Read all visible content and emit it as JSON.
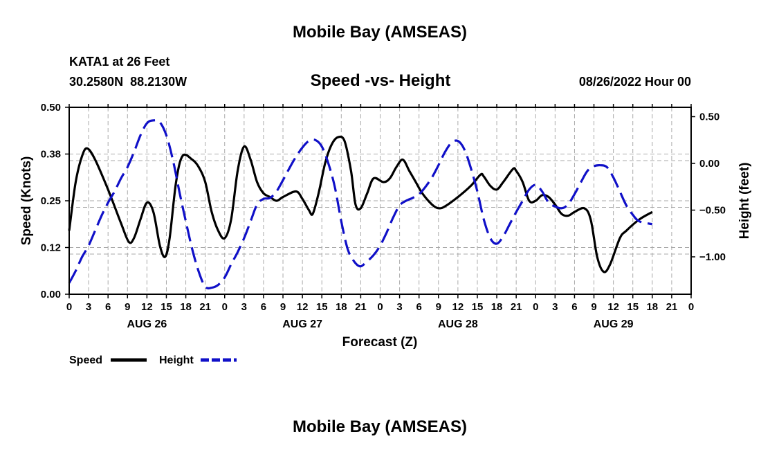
{
  "title": "Mobile Bay (AMSEAS)",
  "footer_title": "Mobile Bay (AMSEAS)",
  "station": {
    "name": "KATA1 at 26 Feet",
    "coords": "30.2580N  88.2130W"
  },
  "plot_title": "Speed -vs- Height",
  "datetime": "08/26/2022 Hour 00",
  "colors": {
    "speed": "#000000",
    "height": "#1010c8",
    "grid": "#aaaaaa"
  },
  "chart_data": {
    "type": "line",
    "title": "Speed -vs- Height",
    "xlabel": "Forecast (Z)",
    "ylabel": "Speed (Knots)",
    "y2label": "Height (feet)",
    "xlim": [
      0,
      96
    ],
    "ylim": [
      0,
      0.5
    ],
    "y2lim": [
      -1.4,
      0.6
    ],
    "grid": true,
    "x_ticks": [
      0,
      3,
      6,
      9,
      12,
      15,
      18,
      21,
      24,
      27,
      30,
      33,
      36,
      39,
      42,
      45,
      48,
      51,
      54,
      57,
      60,
      63,
      66,
      69,
      72,
      75,
      78,
      81,
      84,
      87,
      90,
      93,
      96
    ],
    "x_tick_labels": [
      "0",
      "3",
      "6",
      "9",
      "12",
      "15",
      "18",
      "21",
      "0",
      "3",
      "6",
      "9",
      "12",
      "15",
      "18",
      "21",
      "0",
      "3",
      "6",
      "9",
      "12",
      "15",
      "18",
      "21",
      "0",
      "3",
      "6",
      "9",
      "12",
      "15",
      "18",
      "21",
      "0"
    ],
    "day_labels": [
      {
        "x": 12,
        "label": "AUG 26"
      },
      {
        "x": 36,
        "label": "AUG 27"
      },
      {
        "x": 60,
        "label": "AUG 28"
      },
      {
        "x": 84,
        "label": "AUG 29"
      }
    ],
    "y_ticks": [
      0,
      0.125,
      0.25,
      0.375,
      0.5
    ],
    "y_tick_labels": [
      "0.00",
      "0.12",
      "0.25",
      "0.38",
      "0.50"
    ],
    "y2_ticks": [
      -1.0,
      -0.5,
      0.0,
      0.5
    ],
    "y2_tick_labels": [
      "−1.00",
      "−0.50",
      "0.00",
      "0.50"
    ],
    "legend": [
      {
        "label": "Speed",
        "series": "speed"
      },
      {
        "label": "Height",
        "series": "height"
      }
    ],
    "series": [
      {
        "name": "Speed",
        "axis": "left",
        "style": "solid",
        "points": [
          [
            0,
            0.17
          ],
          [
            1,
            0.3
          ],
          [
            2,
            0.37
          ],
          [
            2.8,
            0.39
          ],
          [
            4,
            0.36
          ],
          [
            6,
            0.28
          ],
          [
            8,
            0.19
          ],
          [
            9.2,
            0.14
          ],
          [
            10,
            0.15
          ],
          [
            11,
            0.2
          ],
          [
            12,
            0.245
          ],
          [
            13,
            0.22
          ],
          [
            14,
            0.13
          ],
          [
            14.8,
            0.1
          ],
          [
            15.5,
            0.15
          ],
          [
            16.5,
            0.3
          ],
          [
            17.5,
            0.37
          ],
          [
            19,
            0.36
          ],
          [
            20,
            0.34
          ],
          [
            21,
            0.3
          ],
          [
            22,
            0.22
          ],
          [
            23,
            0.17
          ],
          [
            24,
            0.15
          ],
          [
            25,
            0.2
          ],
          [
            26,
            0.33
          ],
          [
            27,
            0.395
          ],
          [
            28,
            0.36
          ],
          [
            29,
            0.3
          ],
          [
            30,
            0.27
          ],
          [
            31,
            0.26
          ],
          [
            32,
            0.25
          ],
          [
            33,
            0.26
          ],
          [
            35,
            0.275
          ],
          [
            36,
            0.255
          ],
          [
            37,
            0.225
          ],
          [
            37.6,
            0.215
          ],
          [
            38.5,
            0.27
          ],
          [
            39.5,
            0.35
          ],
          [
            40.5,
            0.4
          ],
          [
            41.5,
            0.42
          ],
          [
            42.5,
            0.41
          ],
          [
            43.5,
            0.33
          ],
          [
            44.2,
            0.24
          ],
          [
            45,
            0.23
          ],
          [
            46,
            0.27
          ],
          [
            47,
            0.31
          ],
          [
            48.5,
            0.3
          ],
          [
            49.5,
            0.31
          ],
          [
            50.5,
            0.34
          ],
          [
            51.5,
            0.36
          ],
          [
            52.5,
            0.33
          ],
          [
            53.5,
            0.3
          ],
          [
            54.5,
            0.27
          ],
          [
            56,
            0.24
          ],
          [
            57,
            0.23
          ],
          [
            58,
            0.235
          ],
          [
            60,
            0.26
          ],
          [
            62,
            0.29
          ],
          [
            63.5,
            0.32
          ],
          [
            64,
            0.315
          ],
          [
            65,
            0.29
          ],
          [
            66,
            0.28
          ],
          [
            67,
            0.3
          ],
          [
            68.5,
            0.335
          ],
          [
            69,
            0.33
          ],
          [
            70,
            0.3
          ],
          [
            71,
            0.25
          ],
          [
            72,
            0.25
          ],
          [
            73,
            0.265
          ],
          [
            74,
            0.26
          ],
          [
            75,
            0.24
          ],
          [
            76,
            0.215
          ],
          [
            77,
            0.21
          ],
          [
            78,
            0.22
          ],
          [
            79.5,
            0.23
          ],
          [
            80.5,
            0.2
          ],
          [
            81.5,
            0.1
          ],
          [
            82.5,
            0.06
          ],
          [
            83.5,
            0.08
          ],
          [
            85,
            0.15
          ],
          [
            86,
            0.17
          ],
          [
            88,
            0.2
          ],
          [
            90,
            0.22
          ]
        ]
      },
      {
        "name": "Height",
        "axis": "right",
        "style": "dashed",
        "points": [
          [
            0,
            -1.28
          ],
          [
            1,
            -1.15
          ],
          [
            2,
            -1.0
          ],
          [
            3,
            -0.88
          ],
          [
            4,
            -0.72
          ],
          [
            5,
            -0.56
          ],
          [
            6,
            -0.42
          ],
          [
            7,
            -0.3
          ],
          [
            8,
            -0.16
          ],
          [
            9,
            -0.04
          ],
          [
            10,
            0.12
          ],
          [
            11,
            0.3
          ],
          [
            12,
            0.43
          ],
          [
            13,
            0.46
          ],
          [
            14,
            0.44
          ],
          [
            15,
            0.3
          ],
          [
            16,
            0.04
          ],
          [
            17,
            -0.3
          ],
          [
            18,
            -0.62
          ],
          [
            19,
            -0.92
          ],
          [
            20,
            -1.16
          ],
          [
            21,
            -1.32
          ],
          [
            22,
            -1.33
          ],
          [
            23,
            -1.3
          ],
          [
            24,
            -1.22
          ],
          [
            25,
            -1.08
          ],
          [
            26,
            -0.95
          ],
          [
            27,
            -0.8
          ],
          [
            28,
            -0.62
          ],
          [
            29,
            -0.44
          ],
          [
            30,
            -0.38
          ],
          [
            31,
            -0.37
          ],
          [
            32,
            -0.3
          ],
          [
            33,
            -0.18
          ],
          [
            34,
            -0.05
          ],
          [
            35,
            0.07
          ],
          [
            36,
            0.17
          ],
          [
            37,
            0.24
          ],
          [
            38,
            0.25
          ],
          [
            39,
            0.18
          ],
          [
            40,
            0.0
          ],
          [
            41,
            -0.25
          ],
          [
            42,
            -0.62
          ],
          [
            43,
            -0.92
          ],
          [
            44,
            -1.05
          ],
          [
            44.8,
            -1.1
          ],
          [
            45.5,
            -1.08
          ],
          [
            47,
            -0.98
          ],
          [
            48,
            -0.88
          ],
          [
            49,
            -0.74
          ],
          [
            50,
            -0.58
          ],
          [
            51,
            -0.45
          ],
          [
            52,
            -0.4
          ],
          [
            53,
            -0.37
          ],
          [
            54,
            -0.33
          ],
          [
            55,
            -0.25
          ],
          [
            56,
            -0.15
          ],
          [
            57,
            -0.02
          ],
          [
            58,
            0.12
          ],
          [
            59,
            0.22
          ],
          [
            60,
            0.24
          ],
          [
            61,
            0.15
          ],
          [
            62,
            -0.05
          ],
          [
            63,
            -0.3
          ],
          [
            64,
            -0.6
          ],
          [
            65,
            -0.8
          ],
          [
            66,
            -0.86
          ],
          [
            67,
            -0.78
          ],
          [
            68,
            -0.65
          ],
          [
            69,
            -0.52
          ],
          [
            70,
            -0.4
          ],
          [
            71,
            -0.28
          ],
          [
            72,
            -0.23
          ],
          [
            73,
            -0.3
          ],
          [
            74,
            -0.42
          ],
          [
            75,
            -0.46
          ],
          [
            76,
            -0.48
          ],
          [
            77,
            -0.44
          ],
          [
            78,
            -0.33
          ],
          [
            79,
            -0.2
          ],
          [
            80,
            -0.08
          ],
          [
            81,
            -0.03
          ],
          [
            82,
            -0.02
          ],
          [
            83,
            -0.04
          ],
          [
            84,
            -0.15
          ],
          [
            85,
            -0.3
          ],
          [
            86,
            -0.45
          ],
          [
            87,
            -0.55
          ],
          [
            88,
            -0.62
          ],
          [
            90,
            -0.65
          ]
        ]
      }
    ]
  }
}
